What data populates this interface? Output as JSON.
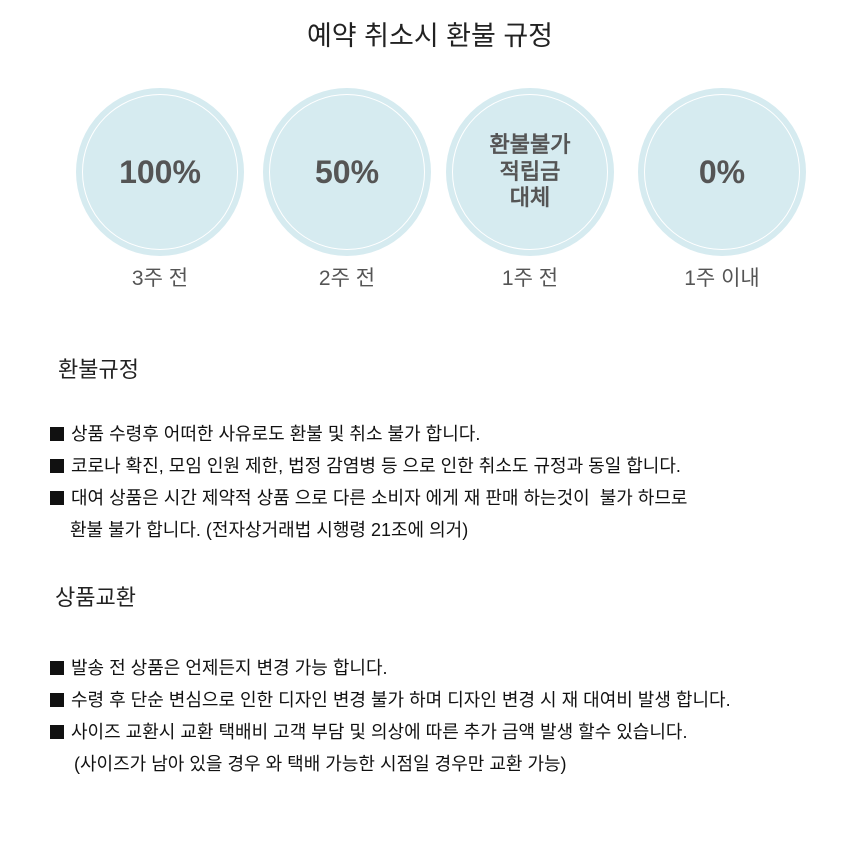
{
  "title": "예약 취소시 환불 규정",
  "circles": [
    {
      "value": "100%",
      "caption": "3주 전"
    },
    {
      "value": "50%",
      "caption": "2주 전"
    },
    {
      "value": "환불불가\n적립금\n대체",
      "caption": "1주 전"
    },
    {
      "value": "0%",
      "caption": "1주 이내"
    }
  ],
  "circle_color": "#d6ebf0",
  "refund": {
    "heading": "환불규정",
    "items": [
      "상품 수령후 어떠한 사유로도 환불 및 취소 불가 합니다.",
      "코로나 확진, 모임 인원 제한, 법정 감염병 등 으로 인한 취소도 규정과 동일 합니다.",
      "대여 상품은 시간 제약적 상품 으로 다른 소비자 에게 재 판매 하는것이  불가 하므로"
    ],
    "continuation": "환불 불가 합니다. (전자상거래법 시행령 21조에 의거)"
  },
  "exchange": {
    "heading": "상품교환",
    "items": [
      "발송 전 상품은 언제든지 변경 가능 합니다.",
      "수령 후 단순 변심으로 인한 디자인 변경 불가 하며 디자인 변경 시 재 대여비 발생 합니다.",
      "사이즈 교환시 교환 택배비 고객 부담 및 의상에 따른 추가 금액 발생 할수 있습니다."
    ],
    "continuation": "(사이즈가 남아 있을 경우 와 택배 가능한 시점일 경우만 교환 가능)"
  }
}
